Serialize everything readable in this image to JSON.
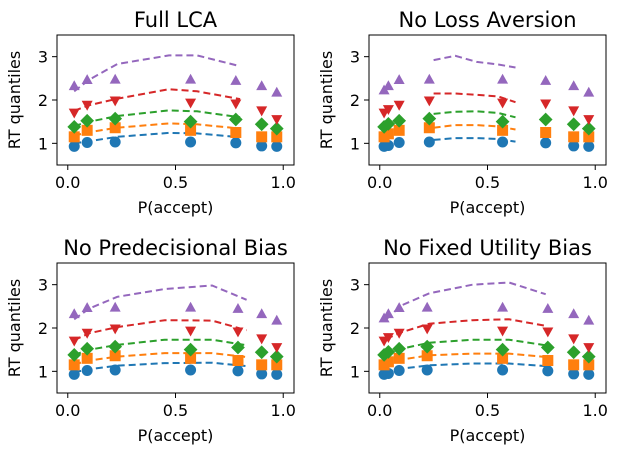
{
  "colors": {
    "q1": "#1f77b4",
    "q2": "#ff7f0e",
    "q3": "#2ca02c",
    "q4": "#d62728",
    "q5": "#9467bd"
  },
  "chart_data": [
    {
      "type": "scatter+line",
      "title": "Full LCA",
      "xlabel": "P(accept)",
      "ylabel": "RT quantiles",
      "xlim": [
        -0.05,
        1.05
      ],
      "ylim": [
        0.5,
        3.5
      ],
      "xticks": [
        "0.0",
        "0.5",
        "1.0"
      ],
      "yticks": [
        "1",
        "2",
        "3"
      ],
      "points_x": [
        0.03,
        0.09,
        0.22,
        0.57,
        0.78,
        0.9,
        0.97
      ],
      "quantiles": [
        {
          "marker": "circle",
          "y": [
            0.93,
            1.02,
            1.03,
            1.03,
            1.01,
            0.94,
            0.93
          ]
        },
        {
          "marker": "square",
          "y": [
            1.15,
            1.3,
            1.36,
            1.3,
            1.25,
            1.15,
            1.15
          ]
        },
        {
          "marker": "diamond",
          "y": [
            1.38,
            1.52,
            1.57,
            1.5,
            1.55,
            1.44,
            1.34
          ]
        },
        {
          "marker": "triangle-down",
          "y": [
            1.7,
            1.88,
            1.98,
            1.93,
            1.91,
            1.75,
            1.55
          ]
        },
        {
          "marker": "triangle-up",
          "y": [
            2.33,
            2.47,
            2.48,
            2.48,
            2.45,
            2.33,
            2.18
          ]
        }
      ],
      "model_x": [
        0.03,
        0.1,
        0.23,
        0.47,
        0.6,
        0.8
      ],
      "model_lines": [
        [
          1.0,
          1.05,
          1.15,
          1.24,
          1.23,
          1.14
        ],
        [
          1.18,
          1.26,
          1.36,
          1.46,
          1.44,
          1.34
        ],
        [
          1.4,
          1.5,
          1.63,
          1.76,
          1.74,
          1.6
        ],
        [
          1.75,
          1.88,
          2.03,
          2.25,
          2.2,
          2.02
        ],
        [
          2.2,
          2.47,
          2.83,
          3.03,
          3.03,
          2.78
        ]
      ]
    },
    {
      "type": "scatter+line",
      "title": "No Loss Aversion",
      "xlabel": "P(accept)",
      "ylabel": "RT quantiles",
      "xlim": [
        -0.05,
        1.05
      ],
      "ylim": [
        0.5,
        3.5
      ],
      "xticks": [
        "0.0",
        "0.5",
        "1.0"
      ],
      "yticks": [
        "1",
        "2",
        "3"
      ],
      "points_x": [
        0.02,
        0.04,
        0.09,
        0.23,
        0.57,
        0.77,
        0.9,
        0.97
      ],
      "quantiles": [
        {
          "marker": "circle",
          "y": [
            0.93,
            0.95,
            1.02,
            1.03,
            1.03,
            1.01,
            0.94,
            0.93
          ]
        },
        {
          "marker": "square",
          "y": [
            1.15,
            1.22,
            1.3,
            1.36,
            1.3,
            1.25,
            1.15,
            1.15
          ]
        },
        {
          "marker": "diamond",
          "y": [
            1.38,
            1.45,
            1.52,
            1.57,
            1.5,
            1.55,
            1.44,
            1.34
          ]
        },
        {
          "marker": "triangle-down",
          "y": [
            1.7,
            1.78,
            1.88,
            1.98,
            1.93,
            1.91,
            1.75,
            1.55
          ]
        },
        {
          "marker": "triangle-up",
          "y": [
            2.23,
            2.33,
            2.47,
            2.48,
            2.48,
            2.45,
            2.33,
            2.18
          ]
        }
      ],
      "model_x": [
        0.25,
        0.35,
        0.45,
        0.55,
        0.63
      ],
      "model_lines": [
        [
          1.08,
          1.12,
          1.12,
          1.1,
          1.04
        ],
        [
          1.36,
          1.42,
          1.42,
          1.39,
          1.32
        ],
        [
          1.68,
          1.73,
          1.74,
          1.7,
          1.6
        ],
        [
          2.15,
          2.15,
          2.12,
          2.08,
          1.95
        ],
        [
          2.92,
          3.02,
          2.88,
          2.82,
          2.75
        ]
      ]
    },
    {
      "type": "scatter+line",
      "title": "No Predecisional Bias",
      "xlabel": "P(accept)",
      "ylabel": "RT quantiles",
      "xlim": [
        -0.05,
        1.05
      ],
      "ylim": [
        0.5,
        3.5
      ],
      "xticks": [
        "0.0",
        "0.5",
        "1.0"
      ],
      "yticks": [
        "1",
        "2",
        "3"
      ],
      "points_x": [
        0.03,
        0.09,
        0.22,
        0.57,
        0.79,
        0.9,
        0.97
      ],
      "quantiles": [
        {
          "marker": "circle",
          "y": [
            0.93,
            1.02,
            1.03,
            1.03,
            1.01,
            0.94,
            0.93
          ]
        },
        {
          "marker": "square",
          "y": [
            1.15,
            1.3,
            1.36,
            1.3,
            1.25,
            1.15,
            1.15
          ]
        },
        {
          "marker": "diamond",
          "y": [
            1.38,
            1.52,
            1.57,
            1.5,
            1.55,
            1.44,
            1.34
          ]
        },
        {
          "marker": "triangle-down",
          "y": [
            1.7,
            1.88,
            1.98,
            1.93,
            1.91,
            1.75,
            1.55
          ]
        },
        {
          "marker": "triangle-up",
          "y": [
            2.33,
            2.47,
            2.48,
            2.48,
            2.45,
            2.33,
            2.18
          ]
        }
      ],
      "model_x": [
        0.03,
        0.1,
        0.23,
        0.45,
        0.67,
        0.83
      ],
      "model_lines": [
        [
          0.98,
          1.05,
          1.13,
          1.19,
          1.2,
          1.12
        ],
        [
          1.16,
          1.25,
          1.34,
          1.42,
          1.42,
          1.33
        ],
        [
          1.38,
          1.5,
          1.61,
          1.73,
          1.73,
          1.6
        ],
        [
          1.72,
          1.88,
          2.02,
          2.18,
          2.17,
          1.95
        ],
        [
          2.2,
          2.45,
          2.72,
          2.9,
          2.98,
          2.65
        ]
      ]
    },
    {
      "type": "scatter+line",
      "title": "No Fixed Utility Bias",
      "xlabel": "P(accept)",
      "ylabel": "RT quantiles",
      "xlim": [
        -0.05,
        1.05
      ],
      "ylim": [
        0.5,
        3.5
      ],
      "xticks": [
        "0.0",
        "0.5",
        "1.0"
      ],
      "yticks": [
        "1",
        "2",
        "3"
      ],
      "points_x": [
        0.02,
        0.04,
        0.09,
        0.22,
        0.57,
        0.78,
        0.9,
        0.97
      ],
      "quantiles": [
        {
          "marker": "circle",
          "y": [
            0.93,
            0.95,
            1.02,
            1.03,
            1.03,
            1.01,
            0.94,
            0.93
          ]
        },
        {
          "marker": "square",
          "y": [
            1.15,
            1.22,
            1.3,
            1.36,
            1.3,
            1.25,
            1.15,
            1.15
          ]
        },
        {
          "marker": "diamond",
          "y": [
            1.38,
            1.45,
            1.52,
            1.57,
            1.5,
            1.55,
            1.44,
            1.34
          ]
        },
        {
          "marker": "triangle-down",
          "y": [
            1.7,
            1.78,
            1.88,
            1.98,
            1.93,
            1.91,
            1.75,
            1.55
          ]
        },
        {
          "marker": "triangle-up",
          "y": [
            2.23,
            2.33,
            2.47,
            2.48,
            2.48,
            2.45,
            2.33,
            2.18
          ]
        }
      ],
      "model_x": [
        0.03,
        0.1,
        0.23,
        0.43,
        0.6,
        0.77
      ],
      "model_lines": [
        [
          0.98,
          1.06,
          1.14,
          1.18,
          1.18,
          1.12
        ],
        [
          1.18,
          1.27,
          1.37,
          1.41,
          1.41,
          1.33
        ],
        [
          1.4,
          1.52,
          1.66,
          1.73,
          1.73,
          1.6
        ],
        [
          1.75,
          1.9,
          2.1,
          2.18,
          2.2,
          2.05
        ],
        [
          2.2,
          2.52,
          2.8,
          3.0,
          3.05,
          2.78
        ]
      ]
    }
  ]
}
